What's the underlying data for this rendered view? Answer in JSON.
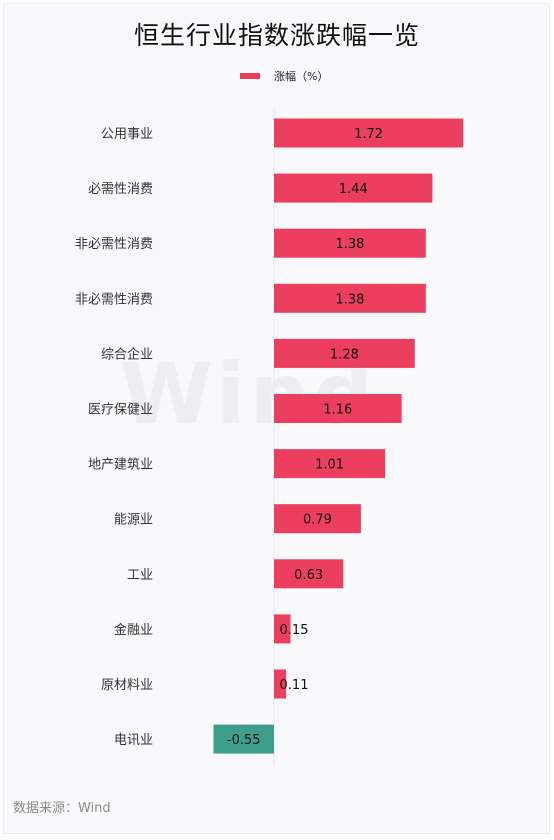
{
  "title": "恒生行业指数涨跌幅一览",
  "legend": {
    "label": "涨幅（%）",
    "color": "#ec3f5f"
  },
  "source": "数据来源：Wind",
  "watermark": "Wind",
  "chart_data": {
    "type": "bar",
    "orientation": "horizontal",
    "title": "恒生行业指数涨跌幅一览",
    "categories": [
      "公用事业",
      "必需性消费",
      "非必需性消费",
      "非必需性消费",
      "综合企业",
      "医疗保健业",
      "地产建筑业",
      "能源业",
      "工业",
      "金融业",
      "原材料业",
      "电讯业"
    ],
    "series": [
      {
        "name": "涨幅（%）",
        "values": [
          1.72,
          1.44,
          1.38,
          1.38,
          1.28,
          1.16,
          1.01,
          0.79,
          0.63,
          0.15,
          0.11,
          -0.55
        ],
        "color_positive": "#ec3f5f",
        "color_negative": "#3d9e8c"
      }
    ],
    "data_labels": [
      "1.72",
      "1.44",
      "1.38",
      "1.38",
      "1.28",
      "1.16",
      "1.01",
      "0.79",
      "0.63",
      "0.15",
      "0.11",
      "-0.55"
    ],
    "legend_position": "top-center",
    "grid": false
  }
}
